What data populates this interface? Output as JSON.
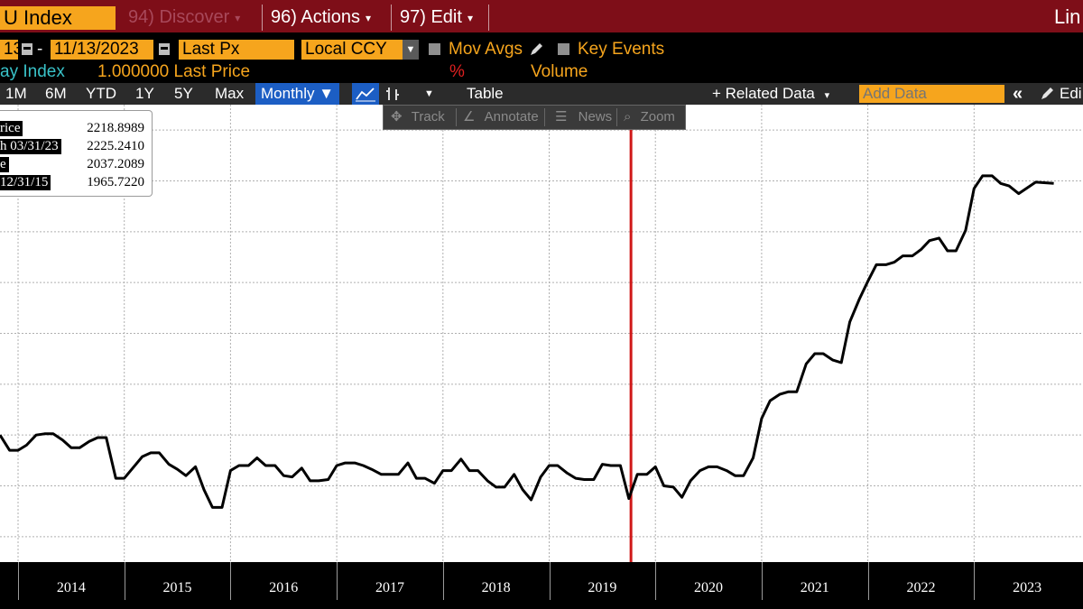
{
  "header": {
    "security": "U Index",
    "tabs": [
      {
        "label": "94) Discover",
        "arrow": "▾"
      },
      {
        "label": "96) Actions",
        "arrow": "▾"
      },
      {
        "label": "97) Edit",
        "arrow": "▾"
      }
    ],
    "right_label": "Lin"
  },
  "params": {
    "start_date": "13",
    "dash": "-",
    "end_date": "11/13/2023",
    "field": "Last Px",
    "currency": "Local CCY",
    "mov_avgs": "Mov Avgs",
    "key_events": "Key Events"
  },
  "series_row": {
    "name": "ay Index",
    "value": "1.000000 Last Price",
    "pct": "%",
    "volume": "Volume"
  },
  "toolbar": {
    "periods": [
      "1M",
      "6M",
      "YTD",
      "1Y",
      "5Y",
      "Max"
    ],
    "frequency": "Monthly ▼",
    "table": "Table",
    "related_data": "+ Related Data",
    "related_arrow": "▾",
    "add_data_placeholder": "Add Data",
    "collapse": "«",
    "edit": "Edi"
  },
  "float_toolbar": {
    "track": "Track",
    "annotate": "Annotate",
    "news": "News",
    "zoom": "Zoom"
  },
  "legend": [
    {
      "label": "rice",
      "value": "2218.8989"
    },
    {
      "label": "h 03/31/23",
      "value": "2225.2410"
    },
    {
      "label": "e",
      "value": "2037.2089"
    },
    {
      "label": "12/31/15",
      "value": "1965.7220"
    }
  ],
  "colors": {
    "header_bg": "#7e0e18",
    "accent_orange": "#f6a51d",
    "selected_blue": "#1c5ec4",
    "marker_red": "#d01818",
    "line": "#000000"
  },
  "chart_data": {
    "type": "line",
    "x_axis_labels": [
      "2014",
      "2015",
      "2016",
      "2017",
      "2018",
      "2019",
      "2020",
      "2021",
      "2022",
      "2023"
    ],
    "x_range": [
      2013.83,
      2023.83
    ],
    "y_range": [
      1930,
      2290
    ],
    "grid": true,
    "vertical_marker_x": 2019.77,
    "series": [
      {
        "x": [
          2013.83,
          2013.92,
          2014.0,
          2014.08,
          2014.17,
          2014.25,
          2014.33,
          2014.42,
          2014.5,
          2014.58,
          2014.67,
          2014.75,
          2014.83,
          2014.92,
          2015.0,
          2015.08,
          2015.17,
          2015.25,
          2015.33,
          2015.42,
          2015.5,
          2015.58,
          2015.67,
          2015.75,
          2015.83,
          2015.92,
          2016.0,
          2016.08,
          2016.17,
          2016.25,
          2016.33,
          2016.42,
          2016.5,
          2016.58,
          2016.67,
          2016.75,
          2016.83,
          2016.92,
          2017.0,
          2017.08,
          2017.17,
          2017.25,
          2017.33,
          2017.42,
          2017.5,
          2017.58,
          2017.67,
          2017.75,
          2017.83,
          2017.92,
          2018.0,
          2018.08,
          2018.17,
          2018.25,
          2018.33,
          2018.42,
          2018.5,
          2018.58,
          2018.67,
          2018.75,
          2018.83,
          2018.92,
          2019.0,
          2019.08,
          2019.17,
          2019.25,
          2019.33,
          2019.42,
          2019.5,
          2019.58,
          2019.67,
          2019.75,
          2019.83,
          2019.92,
          2020.0,
          2020.08,
          2020.17,
          2020.25,
          2020.33,
          2020.42,
          2020.5,
          2020.58,
          2020.67,
          2020.75,
          2020.83,
          2020.92,
          2021.0,
          2021.08,
          2021.17,
          2021.25,
          2021.33,
          2021.42,
          2021.5,
          2021.58,
          2021.67,
          2021.75,
          2021.83,
          2021.92,
          2022.0,
          2022.08,
          2022.17,
          2022.25,
          2022.33,
          2022.42,
          2022.5,
          2022.58,
          2022.67,
          2022.75,
          2022.83,
          2022.92,
          2023.0,
          2023.08,
          2023.17,
          2023.25,
          2023.33,
          2023.42,
          2023.58,
          2023.75
        ],
        "y": [
          2030,
          2018,
          2018,
          2022,
          2030,
          2031,
          2031,
          2026,
          2020,
          2020,
          2025,
          2028,
          2028,
          1996,
          1996,
          2004,
          2013,
          2016,
          2016,
          2007,
          2003,
          1998,
          2005,
          1987,
          1973,
          1973,
          2002,
          2006,
          2006,
          2012,
          2006,
          2006,
          1998,
          1997,
          2004,
          1994,
          1994,
          1995,
          2006,
          2008,
          2008,
          2006,
          2003,
          1999,
          1999,
          1999,
          2008,
          1996,
          1996,
          1992,
          2002,
          2002,
          2011,
          2002,
          2002,
          1994,
          1989,
          1989,
          1999,
          1987,
          1979,
          1997,
          2006,
          2006,
          2000,
          1996,
          1995,
          1995,
          2007,
          2006,
          2006,
          1980,
          1999,
          1999,
          2005,
          1990,
          1989,
          1981,
          1994,
          2002,
          2005,
          2005,
          2002,
          1998,
          1998,
          2012,
          2043,
          2057,
          2062,
          2064,
          2064,
          2086,
          2094,
          2094,
          2089,
          2087,
          2119,
          2137,
          2151,
          2164,
          2164,
          2166,
          2171,
          2171,
          2176,
          2183,
          2185,
          2175,
          2175,
          2191,
          2224,
          2234,
          2234,
          2228,
          2226,
          2220,
          2229,
          2228
        ]
      }
    ]
  }
}
